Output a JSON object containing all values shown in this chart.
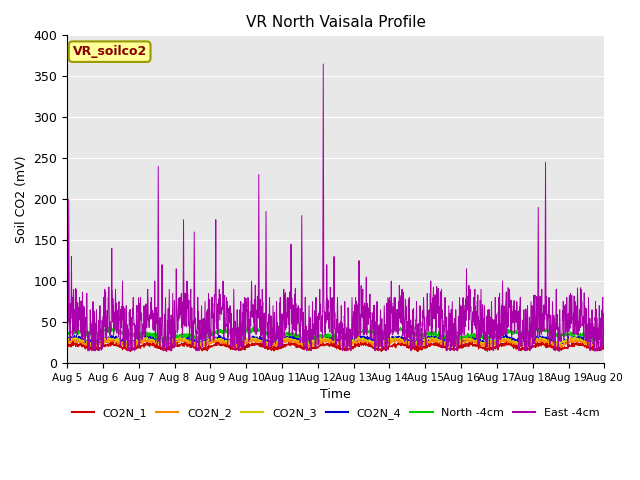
{
  "title": "VR North Vaisala Profile",
  "xlabel": "Time",
  "ylabel": "Soil CO2 (mV)",
  "ylim": [
    0,
    400
  ],
  "background_color": "#e8e8e8",
  "series_colors": {
    "CO2N_1": "#cc0000",
    "CO2N_2": "#ff8800",
    "CO2N_3": "#cccc00",
    "CO2N_4": "#0000cc",
    "North_4cm": "#00cc00",
    "East_4cm": "#aa00aa"
  },
  "annotation_text": "VR_soilco2",
  "annotation_color": "#880000",
  "annotation_bg": "#ffff99",
  "annotation_border": "#999900",
  "n_points": 2000,
  "seed": 12345
}
